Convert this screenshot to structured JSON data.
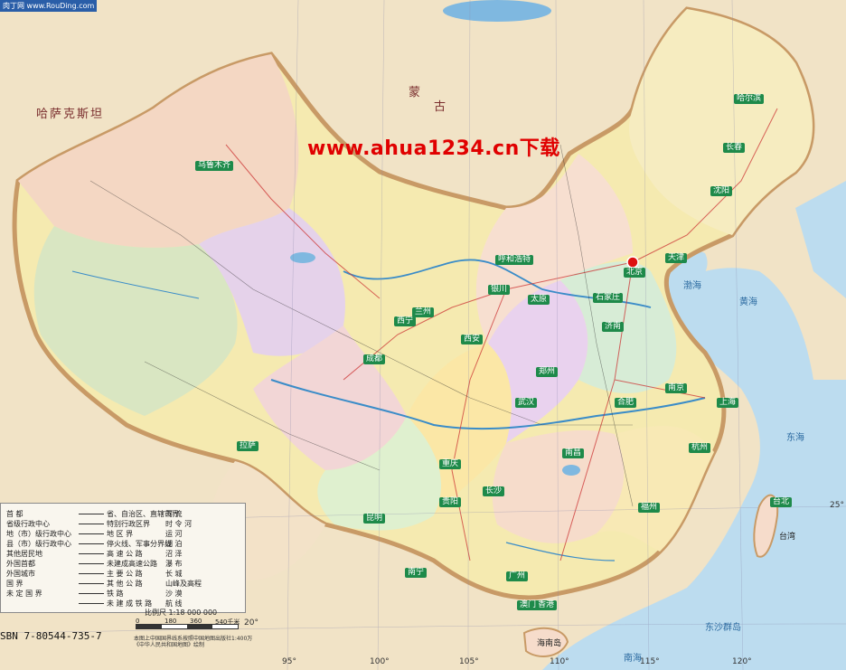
{
  "map": {
    "corner_tag": "肉丁网 www.RouDing.com",
    "watermark": "www.ahua1234.cn下载",
    "isbn": "SBN 7-80544-735-7",
    "scale_label": "比例尺   1:18 000 000",
    "scale_ticks": [
      "0",
      "180",
      "360",
      "540千米"
    ],
    "note": "本图上中国国界线系按照中国地图出版社1:400万《中华人民共和国地图》绘制",
    "longitudes": [
      "95°",
      "100°",
      "105°",
      "110°",
      "115°",
      "120°"
    ],
    "latitudes": [
      "25°",
      "20°"
    ],
    "places": [
      {
        "name": "蒙",
        "cls": "big"
      },
      {
        "name": "古",
        "cls": "big"
      },
      {
        "name": "哈萨克斯坦",
        "cls": "big"
      },
      {
        "name": "乌鲁木齐",
        "cls": "tag"
      },
      {
        "name": "北京",
        "cls": "tag"
      },
      {
        "name": "兰州",
        "cls": "tag"
      },
      {
        "name": "西宁",
        "cls": "tag"
      },
      {
        "name": "银川",
        "cls": "tag"
      },
      {
        "name": "拉萨",
        "cls": "tag"
      },
      {
        "name": "成都",
        "cls": "tag"
      },
      {
        "name": "重庆",
        "cls": "tag"
      },
      {
        "name": "昆明",
        "cls": "tag"
      },
      {
        "name": "贵阳",
        "cls": "tag"
      },
      {
        "name": "南宁",
        "cls": "tag"
      },
      {
        "name": "广州",
        "cls": "tag"
      },
      {
        "name": "长沙",
        "cls": "tag"
      },
      {
        "name": "武汉",
        "cls": "tag"
      },
      {
        "name": "南昌",
        "cls": "tag"
      },
      {
        "name": "福州",
        "cls": "tag"
      },
      {
        "name": "杭州",
        "cls": "tag"
      },
      {
        "name": "上海",
        "cls": "tag"
      },
      {
        "name": "南京",
        "cls": "tag"
      },
      {
        "name": "合肥",
        "cls": "tag"
      },
      {
        "name": "郑州",
        "cls": "tag"
      },
      {
        "name": "济南",
        "cls": "tag"
      },
      {
        "name": "太原",
        "cls": "tag"
      },
      {
        "name": "石家庄",
        "cls": "tag"
      },
      {
        "name": "天津",
        "cls": "tag"
      },
      {
        "name": "沈阳",
        "cls": "tag"
      },
      {
        "name": "长春",
        "cls": "tag"
      },
      {
        "name": "哈尔滨",
        "cls": "tag"
      },
      {
        "name": "呼和浩特",
        "cls": "tag"
      },
      {
        "name": "西安",
        "cls": "tag"
      },
      {
        "name": "香港",
        "cls": "tag"
      },
      {
        "name": "澳门",
        "cls": "tag"
      },
      {
        "name": "台北",
        "cls": "tag"
      },
      {
        "name": "渤海",
        "cls": "sea"
      },
      {
        "name": "黄海",
        "cls": "sea"
      },
      {
        "name": "东海",
        "cls": "sea"
      },
      {
        "name": "南海",
        "cls": "sea"
      },
      {
        "name": "东沙群岛",
        "cls": "sea"
      },
      {
        "name": "台湾",
        "cls": ""
      },
      {
        "name": "海南岛",
        "cls": ""
      }
    ],
    "legend": {
      "col1": [
        "首        都",
        "省级行政中心",
        "地（市）级行政中心",
        "县（市）级行政中心",
        "其他居民地",
        "外国首都",
        "外国城市",
        "国        界",
        "未  定  国  界"
      ],
      "col2": [
        "省、自治区、直辖市界",
        "特别行政区界",
        "地  区  界",
        "停火线、军事分界线",
        "高  速  公  路",
        "未建成高速公路",
        "主  要  公  路",
        "其  他  公  路",
        "铁        路",
        "未  建  成  铁  路"
      ],
      "col3": [
        "河        流",
        "时  令  河",
        "运        河",
        "湖        泊",
        "沼        泽",
        "瀑        布",
        "长        城",
        "山峰及高程",
        "沙        漠",
        "航        线"
      ]
    }
  }
}
